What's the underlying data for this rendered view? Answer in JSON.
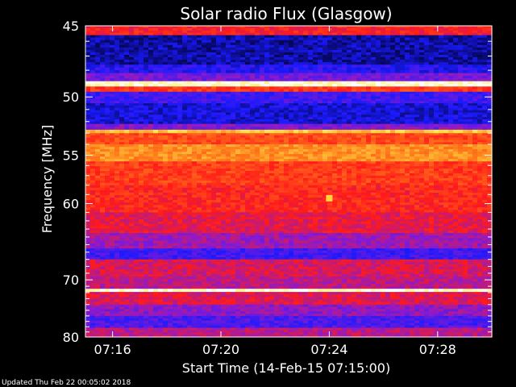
{
  "chart_data": {
    "type": "heatmap",
    "title": "Solar radio Flux (Glasgow)",
    "xlabel": "Start Time (14-Feb-15 07:15:00)",
    "ylabel": "Frequency [MHz]",
    "x_range_minutes": [
      "07:15:00",
      "07:30:00"
    ],
    "ylim": [
      45,
      80
    ],
    "x_ticks": [
      "07:16",
      "07:20",
      "07:24",
      "07:28"
    ],
    "x_tick_minutes": [
      16,
      20,
      24,
      28
    ],
    "y_ticks": [
      45,
      50,
      55,
      60,
      70,
      80
    ],
    "colormap": [
      "#000022",
      "#1a1aff",
      "#8a1ad0",
      "#ff1a1a",
      "#ff7a1a",
      "#ffe84a",
      "#ffffff"
    ],
    "bands": [
      {
        "from": 45.0,
        "to": 45.6,
        "level": 0.5
      },
      {
        "from": 45.6,
        "to": 47.6,
        "level": 0.1
      },
      {
        "from": 47.6,
        "to": 48.2,
        "level": 0.18
      },
      {
        "from": 48.2,
        "to": 48.8,
        "level": 0.3
      },
      {
        "from": 48.8,
        "to": 49.2,
        "level": 0.95
      },
      {
        "from": 49.2,
        "to": 49.6,
        "level": 0.55
      },
      {
        "from": 49.6,
        "to": 50.5,
        "level": 0.22
      },
      {
        "from": 50.5,
        "to": 52.2,
        "level": 0.14
      },
      {
        "from": 52.2,
        "to": 52.7,
        "level": 0.32
      },
      {
        "from": 52.7,
        "to": 53.0,
        "level": 0.78
      },
      {
        "from": 53.0,
        "to": 54.0,
        "level": 0.58
      },
      {
        "from": 54.0,
        "to": 55.6,
        "level": 0.7
      },
      {
        "from": 55.6,
        "to": 58.0,
        "level": 0.56
      },
      {
        "from": 58.0,
        "to": 61.0,
        "level": 0.52
      },
      {
        "from": 61.0,
        "to": 63.5,
        "level": 0.46
      },
      {
        "from": 63.5,
        "to": 65.5,
        "level": 0.36
      },
      {
        "from": 65.5,
        "to": 67.0,
        "level": 0.22
      },
      {
        "from": 67.0,
        "to": 69.5,
        "level": 0.44
      },
      {
        "from": 69.5,
        "to": 71.4,
        "level": 0.4
      },
      {
        "from": 71.4,
        "to": 71.9,
        "level": 0.96
      },
      {
        "from": 71.9,
        "to": 74.0,
        "level": 0.45
      },
      {
        "from": 74.0,
        "to": 76.0,
        "level": 0.34
      },
      {
        "from": 76.0,
        "to": 78.2,
        "level": 0.24
      },
      {
        "from": 78.2,
        "to": 80.0,
        "level": 0.4
      }
    ],
    "bursts": [
      {
        "time": "07:24:00",
        "freq": 59.4,
        "level": 0.8
      }
    ]
  },
  "footer": {
    "updated": "Updated Thu Feb 22 00:05:02 2018"
  }
}
